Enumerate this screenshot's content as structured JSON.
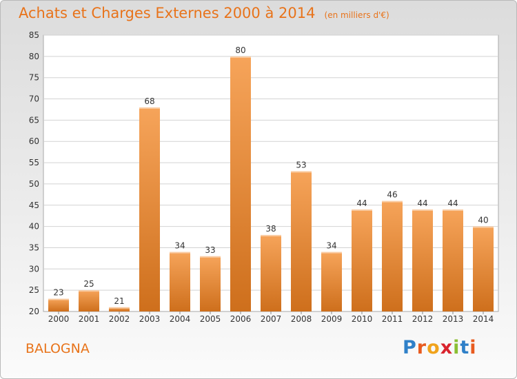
{
  "header": {
    "title": "Achats et Charges Externes 2000 à 2014",
    "subtitle": "(en milliers d'€)"
  },
  "place_name": "BALOGNA",
  "logo": {
    "letters": [
      "P",
      "r",
      "o",
      "x",
      "i",
      "t",
      "i"
    ],
    "colors": [
      "#2f80c8",
      "#e85b1f",
      "#f0a31c",
      "#d9232d",
      "#8bbf33",
      "#2f80c8",
      "#e85b1f"
    ]
  },
  "colors": {
    "accent": "#e8731a",
    "bar_top": "#f6a45a",
    "bar_bottom": "#ce6f1c"
  },
  "chart_data": {
    "type": "bar",
    "categories": [
      "2000",
      "2001",
      "2002",
      "2003",
      "2004",
      "2005",
      "2006",
      "2007",
      "2008",
      "2009",
      "2010",
      "2011",
      "2012",
      "2013",
      "2014"
    ],
    "values": [
      23,
      25,
      21,
      68,
      34,
      33,
      80,
      38,
      53,
      34,
      44,
      46,
      44,
      44,
      40
    ],
    "title": "Achats et Charges Externes 2000 à 2014",
    "subtitle": "(en milliers d'€)",
    "ylim": [
      20,
      85
    ],
    "yticks": [
      20,
      25,
      30,
      35,
      40,
      45,
      50,
      55,
      60,
      65,
      70,
      75,
      80,
      85
    ],
    "grid": true,
    "data_labels": true
  }
}
